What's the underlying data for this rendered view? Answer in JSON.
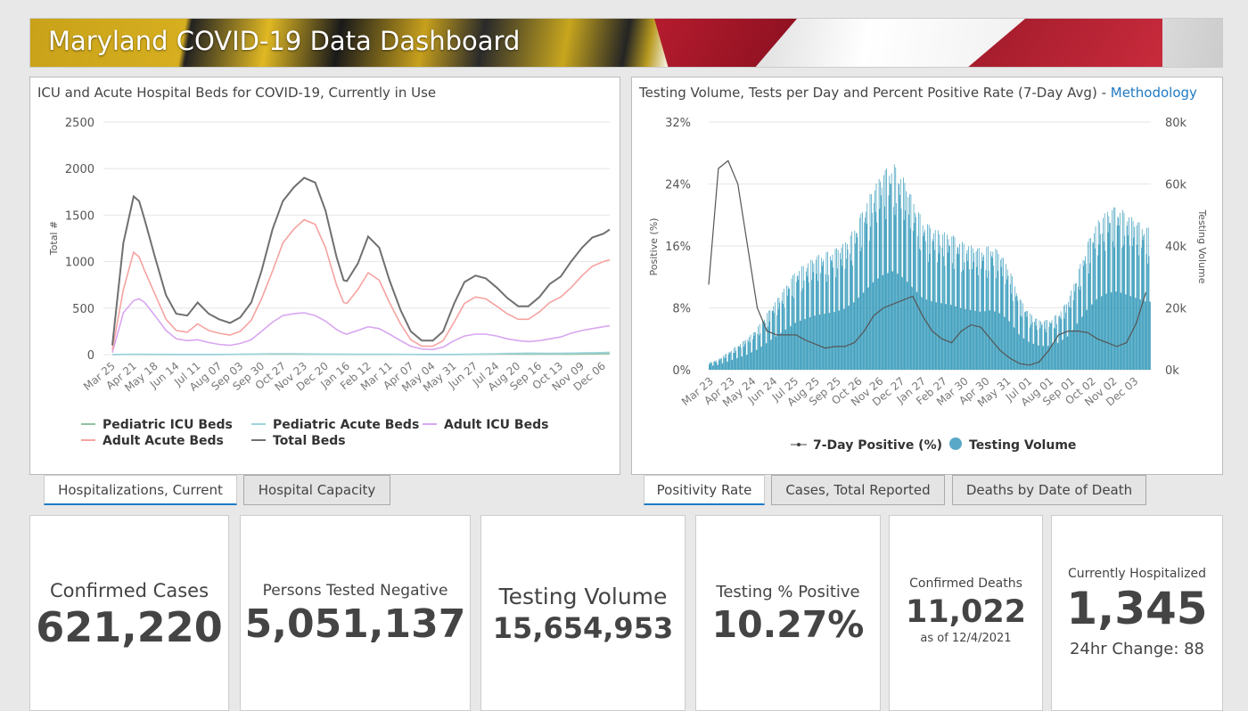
{
  "header": {
    "title": "Maryland COVID-19 Data Dashboard"
  },
  "left_panel": {
    "title": "ICU and Acute Hospital Beds for COVID-19, Currently in Use"
  },
  "right_panel": {
    "title": "Testing Volume, Tests per Day and Percent Positive Rate (7-Day Avg) - ",
    "link": "Methodology"
  },
  "tabs_left": [
    "Hospitalizations, Current",
    "Hospital Capacity"
  ],
  "tabs_right": [
    "Positivity Rate",
    "Cases, Total Reported",
    "Deaths by Date of Death"
  ],
  "cards": [
    {
      "label": "Confirmed Cases",
      "value": "621,220"
    },
    {
      "label": "Persons Tested Negative",
      "value": "5,051,137"
    },
    {
      "label": "Testing Volume",
      "value": "15,654,953"
    },
    {
      "label": "Testing % Positive",
      "value": "10.27%"
    },
    {
      "label": "Confirmed Deaths",
      "value": "11,022",
      "sub": "as of 12/4/2021"
    },
    {
      "label": "Currently Hospitalized",
      "value": "1,345",
      "sub": "24hr Change: 88"
    }
  ],
  "chart_data": [
    {
      "type": "line",
      "title": "ICU and Acute Hospital Beds for COVID-19, Currently in Use",
      "ylabel": "Total #",
      "ylim": [
        0,
        2500
      ],
      "yticks": [
        0,
        500,
        1000,
        1500,
        2000,
        2500
      ],
      "xticks": [
        "Mar 25",
        "Apr 21",
        "May 18",
        "Jun 14",
        "Jul 11",
        "Aug 07",
        "Sep 03",
        "Sep 30",
        "Oct 27",
        "Nov 23",
        "Dec 20",
        "Jan 16",
        "Feb 12",
        "Mar 11",
        "Apr 07",
        "May 04",
        "May 31",
        "Jun 27",
        "Jul 24",
        "Aug 20",
        "Sep 16",
        "Oct 13",
        "Nov 09",
        "Dec 06"
      ],
      "x_days": [
        0,
        14,
        27,
        34,
        41,
        54,
        68,
        81,
        95,
        108,
        122,
        135,
        149,
        162,
        176,
        189,
        203,
        216,
        230,
        243,
        257,
        270,
        284,
        293,
        297,
        311,
        324,
        338,
        351,
        365,
        378,
        392,
        406,
        419,
        433,
        446,
        460,
        473,
        487,
        500,
        514,
        527,
        541,
        554,
        568,
        581,
        595,
        608,
        622,
        630
      ],
      "series": [
        {
          "name": "Pediatric ICU Beds",
          "color": "#8fc1a5",
          "values": [
            0,
            2,
            2,
            2,
            2,
            1,
            1,
            1,
            1,
            1,
            1,
            1,
            2,
            3,
            4,
            5,
            6,
            6,
            5,
            4,
            4,
            3,
            3,
            3,
            3,
            2,
            2,
            2,
            2,
            2,
            2,
            1,
            1,
            1,
            1,
            2,
            3,
            4,
            5,
            6,
            6,
            6,
            5,
            5,
            6,
            6,
            7,
            8,
            9,
            10
          ]
        },
        {
          "name": "Pediatric Acute Beds",
          "color": "#9fd4dd",
          "values": [
            0,
            3,
            4,
            4,
            4,
            3,
            3,
            2,
            2,
            2,
            2,
            2,
            3,
            4,
            6,
            8,
            10,
            10,
            9,
            8,
            7,
            6,
            5,
            5,
            5,
            4,
            4,
            4,
            4,
            3,
            3,
            2,
            2,
            2,
            2,
            4,
            6,
            8,
            10,
            12,
            14,
            16,
            15,
            14,
            15,
            16,
            18,
            20,
            22,
            25
          ]
        },
        {
          "name": "Adult ICU Beds",
          "color": "#d8a6f0",
          "values": [
            20,
            450,
            580,
            600,
            560,
            420,
            260,
            170,
            150,
            160,
            130,
            110,
            100,
            120,
            160,
            250,
            350,
            420,
            440,
            450,
            420,
            360,
            270,
            230,
            220,
            260,
            300,
            280,
            220,
            150,
            90,
            60,
            55,
            80,
            150,
            200,
            220,
            220,
            200,
            170,
            150,
            140,
            150,
            170,
            190,
            230,
            260,
            280,
            300,
            310
          ]
        },
        {
          "name": "Adult Acute Beds",
          "color": "#f5a3a0",
          "values": [
            50,
            700,
            1100,
            1050,
            900,
            650,
            380,
            260,
            240,
            330,
            260,
            230,
            210,
            250,
            370,
            600,
            900,
            1200,
            1350,
            1450,
            1400,
            1150,
            750,
            560,
            550,
            700,
            880,
            800,
            560,
            330,
            160,
            90,
            90,
            150,
            350,
            550,
            620,
            600,
            520,
            440,
            380,
            380,
            460,
            560,
            620,
            720,
            850,
            950,
            1000,
            1020
          ]
        },
        {
          "name": "Total Beds",
          "color": "#707070",
          "values": [
            100,
            1200,
            1700,
            1650,
            1450,
            1050,
            640,
            440,
            420,
            560,
            440,
            380,
            340,
            400,
            560,
            900,
            1350,
            1650,
            1800,
            1900,
            1850,
            1550,
            1050,
            800,
            790,
            980,
            1270,
            1150,
            800,
            480,
            250,
            150,
            150,
            250,
            550,
            780,
            850,
            820,
            720,
            610,
            520,
            520,
            620,
            760,
            840,
            1000,
            1150,
            1260,
            1300,
            1345
          ]
        }
      ]
    },
    {
      "type": "bar+line",
      "title": "Testing Volume, Tests per Day and Percent Positive Rate (7-Day Avg)",
      "ylabel_left": "Positive (%)",
      "ylabel_right": "Testing Volume",
      "ylim_left": [
        0,
        32
      ],
      "ylim_right": [
        0,
        80000
      ],
      "yticks_left": [
        "0%",
        "8%",
        "16%",
        "24%",
        "32%"
      ],
      "yticks_right": [
        "0k",
        "20k",
        "40k",
        "60k",
        "80k"
      ],
      "xticks": [
        "Mar 23",
        "Apr 23",
        "May 24",
        "Jun 24",
        "Jul 25",
        "Aug 25",
        "Sep 25",
        "Oct 26",
        "Nov 26",
        "Dec 27",
        "Jan 27",
        "Feb 27",
        "Mar 30",
        "Apr 30",
        "May 31",
        "Jul 01",
        "Aug 01",
        "Sep 01",
        "Oct 02",
        "Nov 02",
        "Dec 03"
      ],
      "interval_days": 14,
      "legend": [
        "7-Day Positive (%)",
        "Testing Volume"
      ],
      "positive_pct": [
        11,
        26,
        27,
        24,
        16,
        8,
        5,
        4.5,
        4.5,
        4.5,
        3.8,
        3.3,
        2.8,
        3,
        3,
        3.5,
        5,
        7,
        8,
        8.5,
        9,
        9.5,
        7,
        5,
        4,
        3.5,
        5,
        5.8,
        5.5,
        4,
        2.5,
        1.5,
        0.8,
        0.6,
        1,
        2.5,
        4.5,
        5,
        5,
        4.8,
        4,
        3.5,
        3,
        3.5,
        6,
        10
      ],
      "testing_volume_k": [
        2,
        3,
        5,
        7,
        9,
        12,
        16,
        20,
        24,
        28,
        30,
        32,
        33,
        34,
        36,
        40,
        46,
        52,
        56,
        58,
        54,
        48,
        42,
        40,
        39,
        38,
        36,
        35,
        34,
        35,
        33,
        28,
        20,
        16,
        14,
        14,
        16,
        20,
        28,
        36,
        42,
        45,
        46,
        44,
        42,
        40
      ]
    }
  ]
}
